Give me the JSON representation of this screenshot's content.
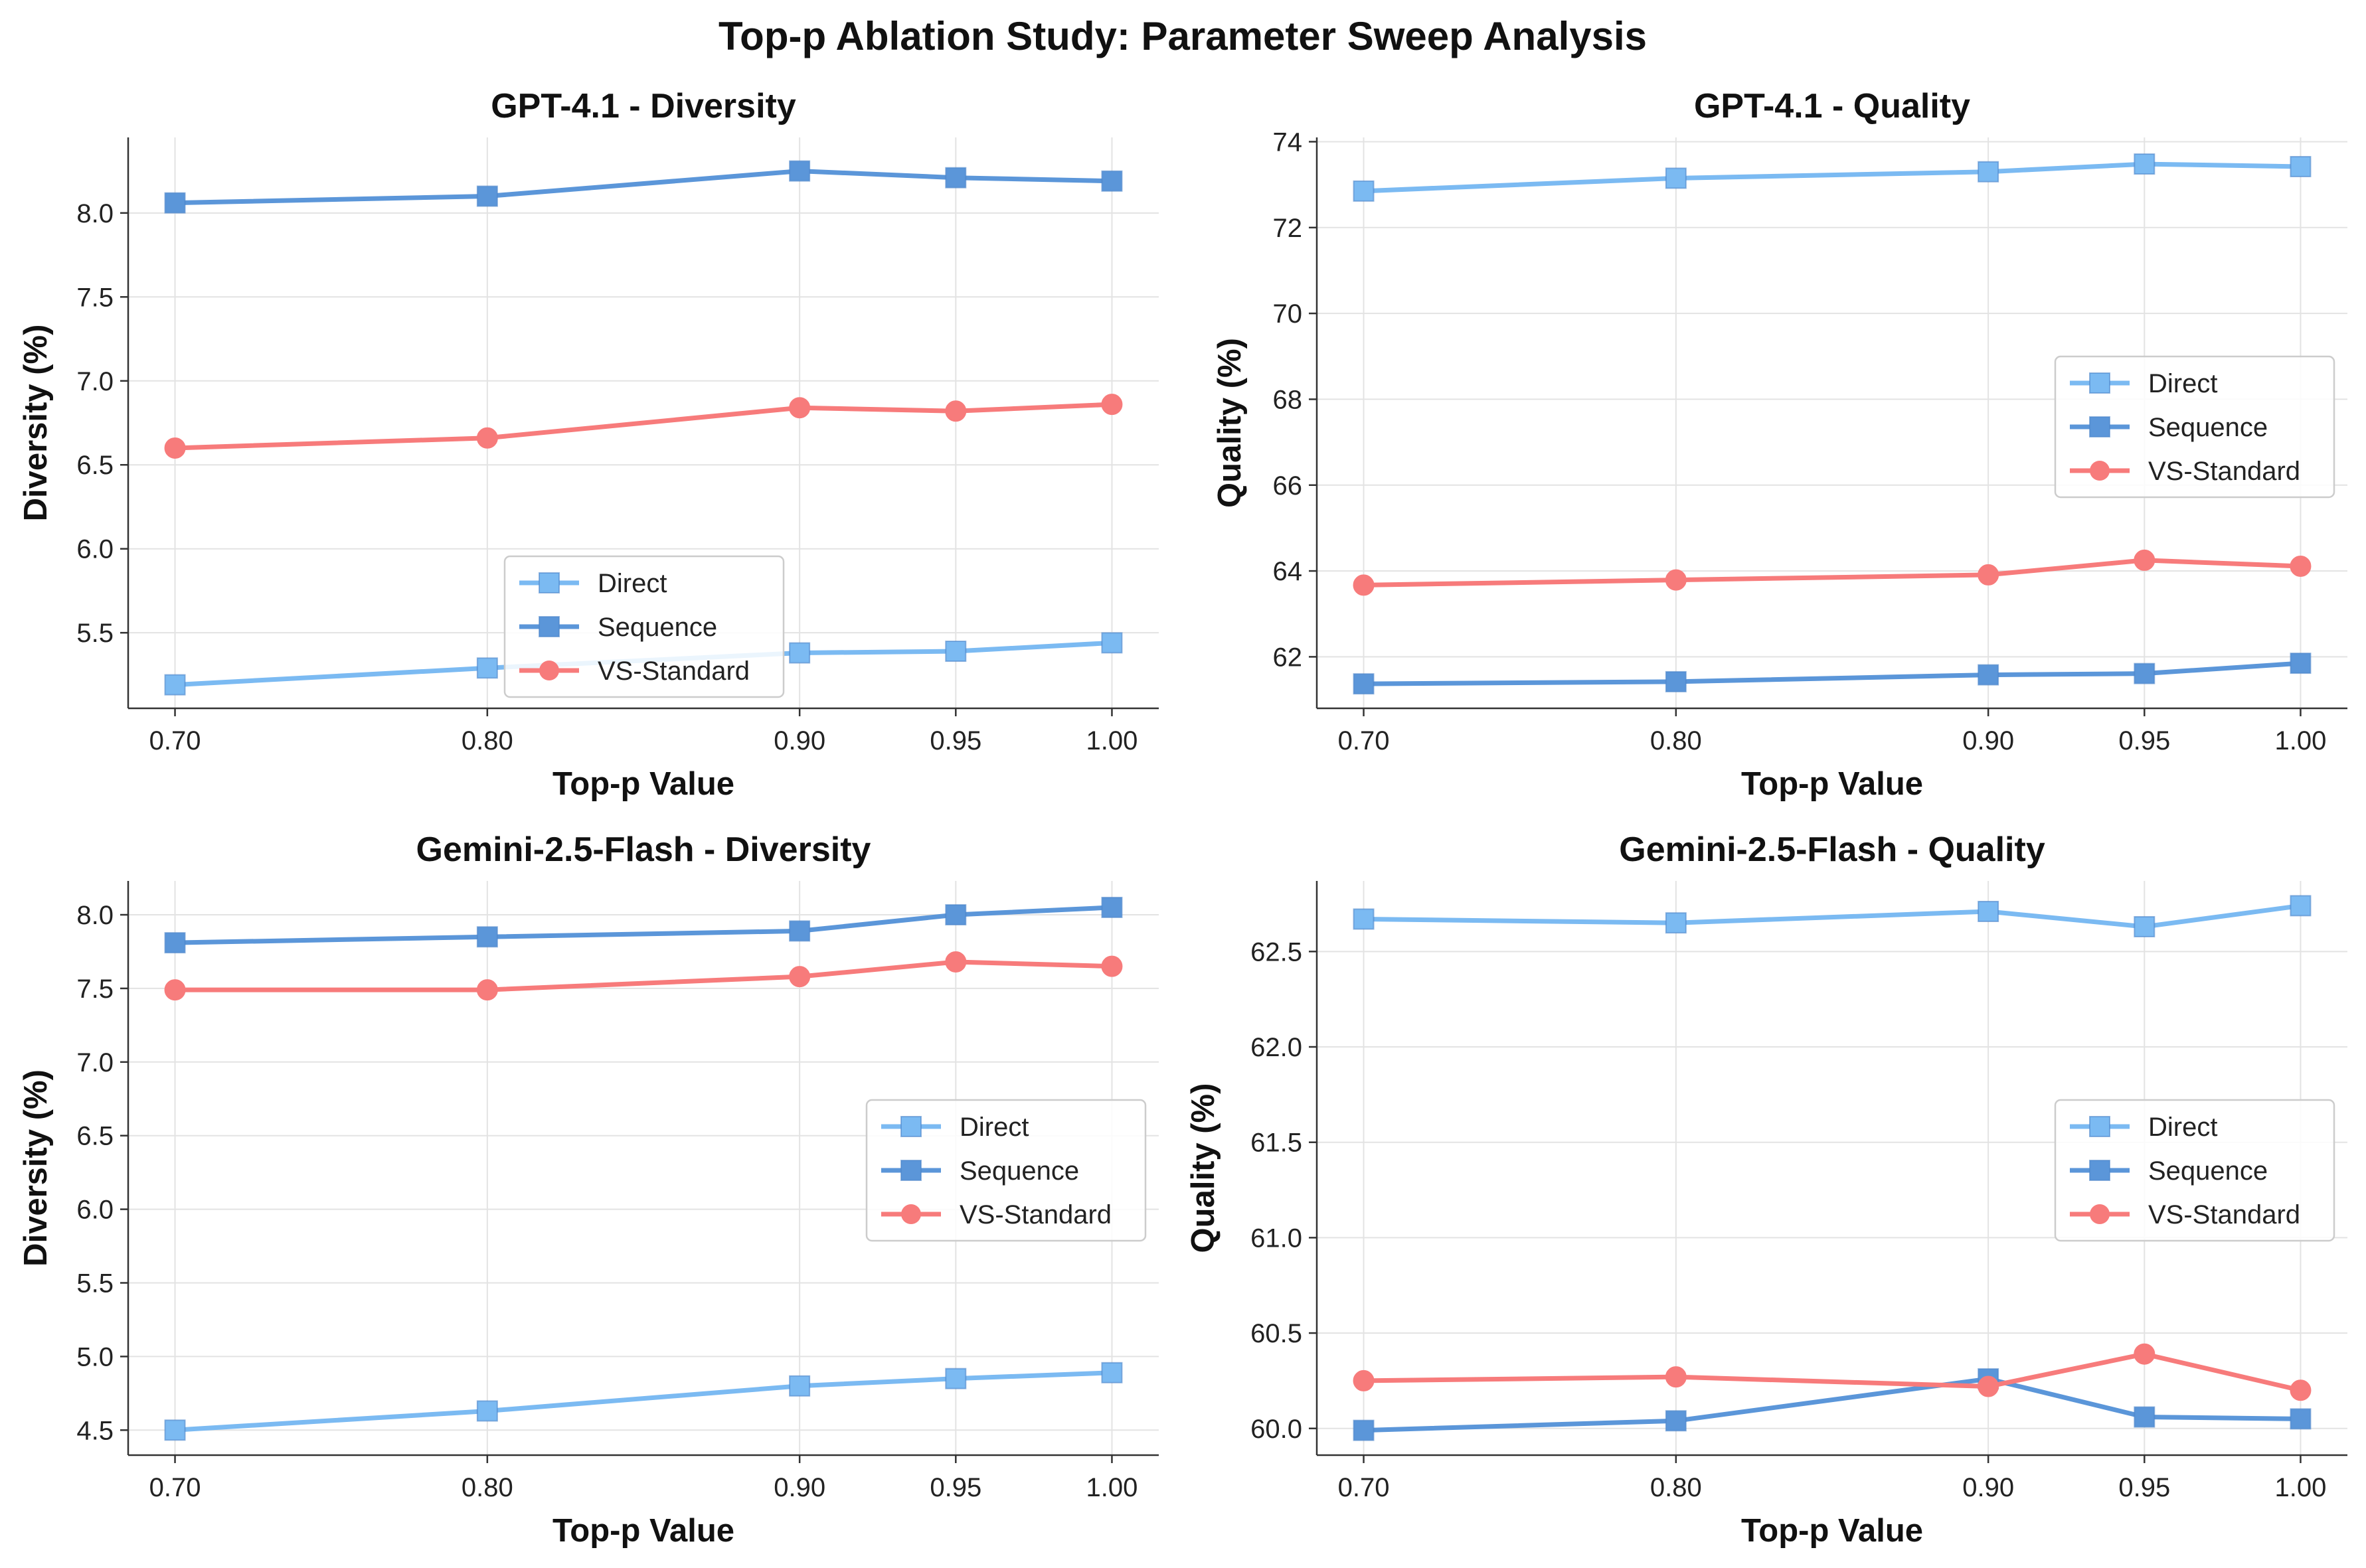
{
  "title": "Top-p Ablation Study: Parameter Sweep Analysis",
  "colors": {
    "Direct": "#7bbaf2",
    "Sequence": "#5b96d9",
    "VS-Standard": "#f77b7b"
  },
  "markers": {
    "Direct": "square",
    "Sequence": "square",
    "VS-Standard": "circle"
  },
  "chart_data": [
    {
      "type": "line",
      "title": "GPT-4.1 - Diversity",
      "xlabel": "Top-p Value",
      "ylabel": "Diversity (%)",
      "x": [
        0.7,
        0.8,
        0.9,
        0.95,
        1.0
      ],
      "xticks": [
        "0.70",
        "0.80",
        "0.90",
        "0.95",
        "1.00"
      ],
      "xlim": [
        0.685,
        1.015
      ],
      "ylim": [
        5.05,
        8.45
      ],
      "yticks": [
        "5.5",
        "6.0",
        "6.5",
        "7.0",
        "7.5",
        "8.0"
      ],
      "legend_position": "lower-center",
      "grid": true,
      "series": [
        {
          "name": "Direct",
          "values": [
            5.19,
            5.29,
            5.38,
            5.39,
            5.44
          ]
        },
        {
          "name": "Sequence",
          "values": [
            8.06,
            8.1,
            8.25,
            8.21,
            8.19
          ]
        },
        {
          "name": "VS-Standard",
          "values": [
            6.6,
            6.66,
            6.84,
            6.82,
            6.86
          ]
        }
      ]
    },
    {
      "type": "line",
      "title": "GPT-4.1 - Quality",
      "xlabel": "Top-p Value",
      "ylabel": "Quality (%)",
      "x": [
        0.7,
        0.8,
        0.9,
        0.95,
        1.0
      ],
      "xticks": [
        "0.70",
        "0.80",
        "0.90",
        "0.95",
        "1.00"
      ],
      "xlim": [
        0.685,
        1.015
      ],
      "ylim": [
        60.8,
        74.1
      ],
      "yticks": [
        "62",
        "64",
        "66",
        "68",
        "70",
        "72",
        "74"
      ],
      "legend_position": "center-right",
      "grid": true,
      "series": [
        {
          "name": "Direct",
          "values": [
            72.85,
            73.15,
            73.3,
            73.48,
            73.42
          ]
        },
        {
          "name": "Sequence",
          "values": [
            61.37,
            61.42,
            61.58,
            61.61,
            61.85
          ]
        },
        {
          "name": "VS-Standard",
          "values": [
            63.67,
            63.79,
            63.91,
            64.25,
            64.11
          ]
        }
      ]
    },
    {
      "type": "line",
      "title": "Gemini-2.5-Flash - Diversity",
      "xlabel": "Top-p Value",
      "ylabel": "Diversity (%)",
      "x": [
        0.7,
        0.8,
        0.9,
        0.95,
        1.0
      ],
      "xticks": [
        "0.70",
        "0.80",
        "0.90",
        "0.95",
        "1.00"
      ],
      "xlim": [
        0.685,
        1.015
      ],
      "ylim": [
        4.33,
        8.23
      ],
      "yticks": [
        "4.5",
        "5.0",
        "5.5",
        "6.0",
        "6.5",
        "7.0",
        "7.5",
        "8.0"
      ],
      "legend_position": "center-right",
      "grid": true,
      "series": [
        {
          "name": "Direct",
          "values": [
            4.5,
            4.63,
            4.8,
            4.85,
            4.89
          ]
        },
        {
          "name": "Sequence",
          "values": [
            7.81,
            7.85,
            7.89,
            8.0,
            8.05
          ]
        },
        {
          "name": "VS-Standard",
          "values": [
            7.49,
            7.49,
            7.58,
            7.68,
            7.65
          ]
        }
      ]
    },
    {
      "type": "line",
      "title": "Gemini-2.5-Flash - Quality",
      "xlabel": "Top-p Value",
      "ylabel": "Quality (%)",
      "x": [
        0.7,
        0.8,
        0.9,
        0.95,
        1.0
      ],
      "xticks": [
        "0.70",
        "0.80",
        "0.90",
        "0.95",
        "1.00"
      ],
      "xlim": [
        0.685,
        1.015
      ],
      "ylim": [
        59.86,
        62.87
      ],
      "yticks": [
        "60.0",
        "60.5",
        "61.0",
        "61.5",
        "62.0",
        "62.5"
      ],
      "legend_position": "center-right",
      "grid": true,
      "series": [
        {
          "name": "Direct",
          "values": [
            62.67,
            62.65,
            62.71,
            62.63,
            62.74
          ]
        },
        {
          "name": "Sequence",
          "values": [
            59.99,
            60.04,
            60.26,
            60.06,
            60.05
          ]
        },
        {
          "name": "VS-Standard",
          "values": [
            60.25,
            60.27,
            60.22,
            60.39,
            60.2
          ]
        }
      ]
    }
  ]
}
